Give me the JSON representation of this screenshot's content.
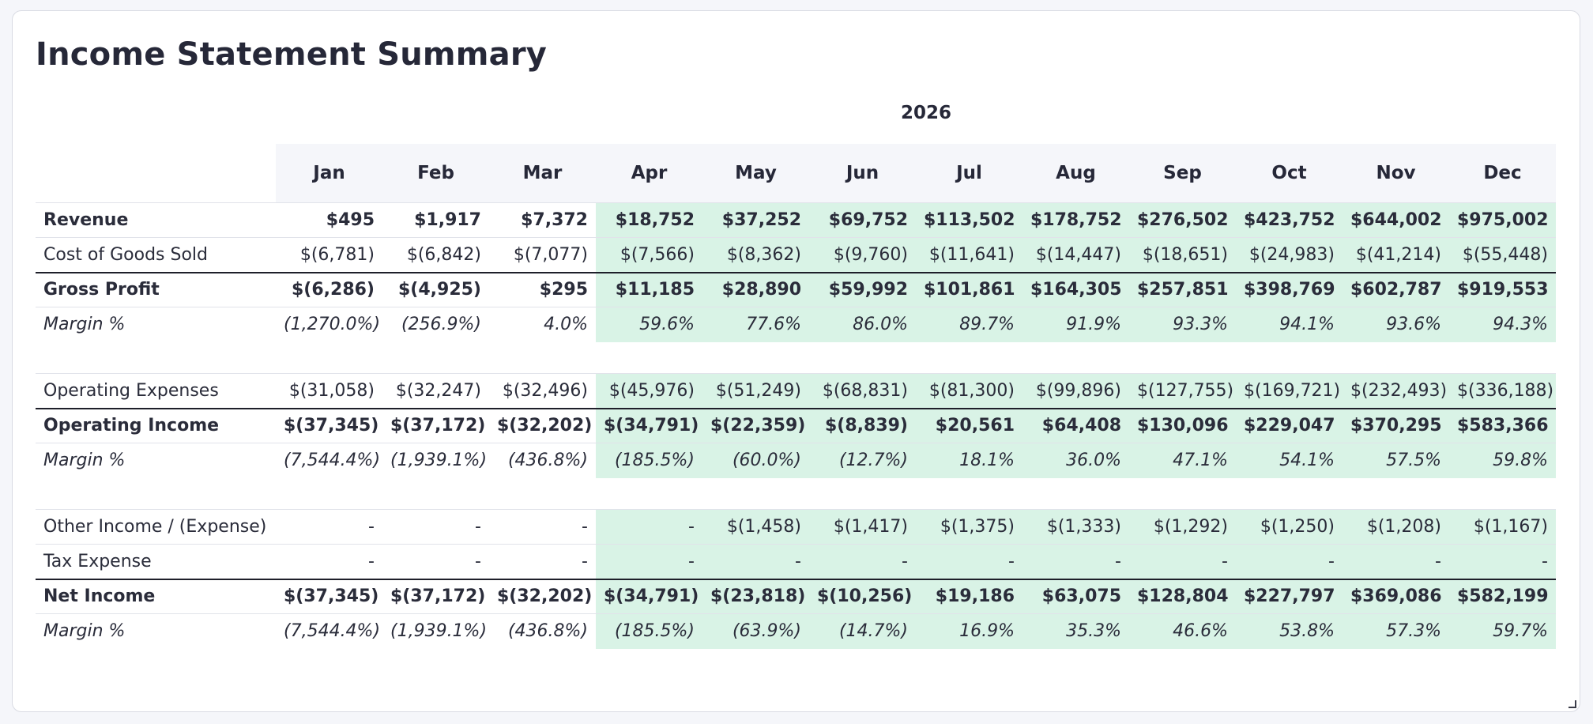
{
  "title": "Income Statement Summary",
  "year_label": "2026",
  "months": [
    "Jan",
    "Feb",
    "Mar",
    "Apr",
    "May",
    "Jun",
    "Jul",
    "Aug",
    "Sep",
    "Oct",
    "Nov",
    "Dec"
  ],
  "highlight_color": "#d9f3e6",
  "highlight_from_month": "Apr",
  "rows": [
    {
      "label": "Revenue",
      "style": "bold",
      "values": [
        "$495",
        "$1,917",
        "$7,372",
        "$18,752",
        "$37,252",
        "$69,752",
        "$113,502",
        "$178,752",
        "$276,502",
        "$423,752",
        "$644,002",
        "$975,002"
      ]
    },
    {
      "label": "Cost of Goods Sold",
      "style": "normal",
      "values": [
        "$(6,781)",
        "$(6,842)",
        "$(7,077)",
        "$(7,566)",
        "$(8,362)",
        "$(9,760)",
        "$(11,641)",
        "$(14,447)",
        "$(18,651)",
        "$(24,983)",
        "$(41,214)",
        "$(55,448)"
      ]
    },
    {
      "label": "Gross Profit",
      "style": "bold",
      "values": [
        "$(6,286)",
        "$(4,925)",
        "$295",
        "$11,185",
        "$28,890",
        "$59,992",
        "$101,861",
        "$164,305",
        "$257,851",
        "$398,769",
        "$602,787",
        "$919,553"
      ]
    },
    {
      "label": "Margin %",
      "style": "italic",
      "values": [
        "(1,270.0%)",
        "(256.9%)",
        "4.0%",
        "59.6%",
        "77.6%",
        "86.0%",
        "89.7%",
        "91.9%",
        "93.3%",
        "94.1%",
        "93.6%",
        "94.3%"
      ]
    },
    {
      "label": "Operating Expenses",
      "style": "normal",
      "values": [
        "$(31,058)",
        "$(32,247)",
        "$(32,496)",
        "$(45,976)",
        "$(51,249)",
        "$(68,831)",
        "$(81,300)",
        "$(99,896)",
        "$(127,755)",
        "$(169,721)",
        "$(232,493)",
        "$(336,188)"
      ]
    },
    {
      "label": "Operating Income",
      "style": "bold",
      "values": [
        "$(37,345)",
        "$(37,172)",
        "$(32,202)",
        "$(34,791)",
        "$(22,359)",
        "$(8,839)",
        "$20,561",
        "$64,408",
        "$130,096",
        "$229,047",
        "$370,295",
        "$583,366"
      ]
    },
    {
      "label": "Margin %",
      "style": "italic",
      "values": [
        "(7,544.4%)",
        "(1,939.1%)",
        "(436.8%)",
        "(185.5%)",
        "(60.0%)",
        "(12.7%)",
        "18.1%",
        "36.0%",
        "47.1%",
        "54.1%",
        "57.5%",
        "59.8%"
      ]
    },
    {
      "label": "Other Income / (Expense)",
      "style": "normal",
      "values": [
        "-",
        "-",
        "-",
        "-",
        "$(1,458)",
        "$(1,417)",
        "$(1,375)",
        "$(1,333)",
        "$(1,292)",
        "$(1,250)",
        "$(1,208)",
        "$(1,167)"
      ]
    },
    {
      "label": "Tax Expense",
      "style": "normal",
      "values": [
        "-",
        "-",
        "-",
        "-",
        "-",
        "-",
        "-",
        "-",
        "-",
        "-",
        "-",
        "-"
      ]
    },
    {
      "label": "Net Income",
      "style": "bold",
      "values": [
        "$(37,345)",
        "$(37,172)",
        "$(32,202)",
        "$(34,791)",
        "$(23,818)",
        "$(10,256)",
        "$19,186",
        "$63,075",
        "$128,804",
        "$227,797",
        "$369,086",
        "$582,199"
      ]
    },
    {
      "label": "Margin %",
      "style": "italic",
      "values": [
        "(7,544.4%)",
        "(1,939.1%)",
        "(436.8%)",
        "(185.5%)",
        "(63.9%)",
        "(14.7%)",
        "16.9%",
        "35.3%",
        "46.6%",
        "53.8%",
        "57.3%",
        "59.7%"
      ]
    }
  ]
}
